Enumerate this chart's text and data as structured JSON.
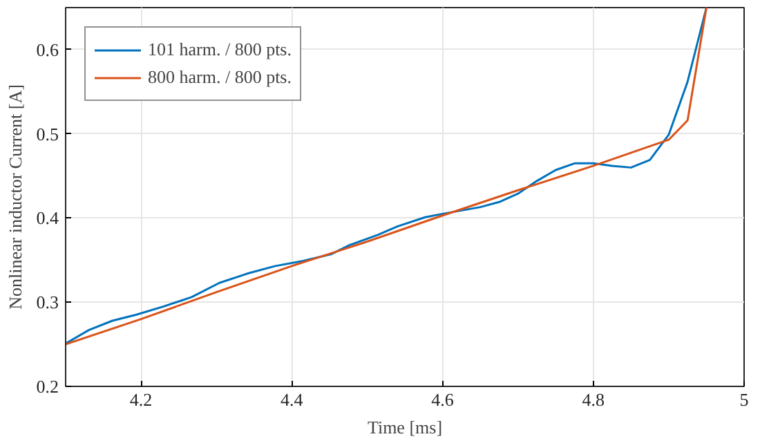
{
  "chart_data": {
    "type": "line",
    "xlabel": "Time [ms]",
    "ylabel": "Nonlinear inductor Current [A]",
    "xlim": [
      4.1,
      5
    ],
    "xticks": [
      4.2,
      4.4,
      4.6,
      4.8,
      5
    ],
    "ylim": [
      0.2,
      0.65
    ],
    "yticks": [
      0.2,
      0.3,
      0.4,
      0.5,
      0.6
    ],
    "grid": true,
    "legend": "top left",
    "line_style": "solid",
    "series": [
      {
        "name": "101 harm. / 800 pts.",
        "color": "#0072bd",
        "x": [
          4.1,
          4.131,
          4.162,
          4.193,
          4.23,
          4.267,
          4.304,
          4.341,
          4.378,
          4.415,
          4.452,
          4.477,
          4.514,
          4.54,
          4.577,
          4.6,
          4.65,
          4.675,
          4.7,
          4.725,
          4.75,
          4.775,
          4.8,
          4.825,
          4.85,
          4.875,
          4.9,
          4.925,
          4.95
        ],
        "values": [
          0.251,
          0.267,
          0.278,
          0.285,
          0.295,
          0.306,
          0.323,
          0.334,
          0.343,
          0.349,
          0.357,
          0.368,
          0.38,
          0.39,
          0.401,
          0.405,
          0.413,
          0.419,
          0.429,
          0.444,
          0.457,
          0.465,
          0.465,
          0.462,
          0.46,
          0.469,
          0.499,
          0.562,
          0.65
        ]
      },
      {
        "name": "800 harm. / 800 pts.",
        "color": "#d95319",
        "x": [
          4.1,
          4.2,
          4.3,
          4.4,
          4.5,
          4.6,
          4.7,
          4.8,
          4.9,
          4.925,
          4.95
        ],
        "values": [
          0.25,
          0.28,
          0.312,
          0.343,
          0.372,
          0.403,
          0.433,
          0.462,
          0.493,
          0.516,
          0.65
        ]
      }
    ]
  }
}
